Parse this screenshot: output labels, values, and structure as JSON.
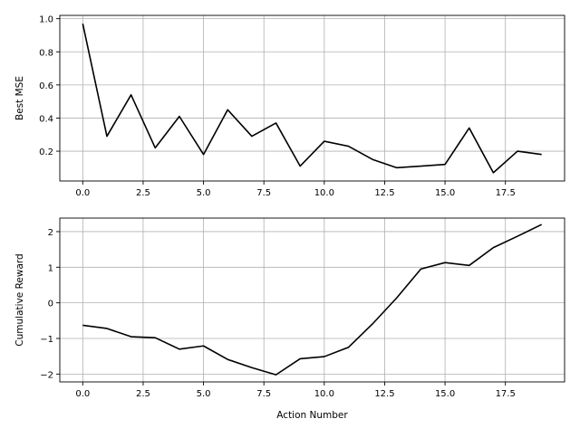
{
  "chart_data": [
    {
      "type": "line",
      "title": "",
      "xlabel": "",
      "ylabel": "Best MSE",
      "xlim": [
        -0.95,
        19.95
      ],
      "ylim": [
        0.02,
        1.02
      ],
      "xticks": [
        0.0,
        2.5,
        5.0,
        7.5,
        10.0,
        12.5,
        15.0,
        17.5
      ],
      "xtick_labels": [
        "0.0",
        "2.5",
        "5.0",
        "7.5",
        "10.0",
        "12.5",
        "15.0",
        "17.5"
      ],
      "yticks": [
        0.2,
        0.4,
        0.6,
        0.8,
        1.0
      ],
      "ytick_labels": [
        "0.2",
        "0.4",
        "0.6",
        "0.8",
        "1.0"
      ],
      "grid": true,
      "line_color": "#000000",
      "x": [
        0,
        1,
        2,
        3,
        4,
        5,
        6,
        7,
        8,
        9,
        10,
        11,
        12,
        13,
        14,
        15,
        16,
        17,
        18,
        19
      ],
      "values": [
        0.97,
        0.29,
        0.54,
        0.22,
        0.41,
        0.18,
        0.45,
        0.29,
        0.37,
        0.11,
        0.26,
        0.23,
        0.15,
        0.1,
        0.11,
        0.12,
        0.34,
        0.07,
        0.2,
        0.18
      ]
    },
    {
      "type": "line",
      "title": "",
      "xlabel": "Action Number",
      "ylabel": "Cumulative Reward",
      "xlim": [
        -0.95,
        19.95
      ],
      "ylim": [
        -2.22,
        2.38
      ],
      "xticks": [
        0.0,
        2.5,
        5.0,
        7.5,
        10.0,
        12.5,
        15.0,
        17.5
      ],
      "xtick_labels": [
        "0.0",
        "2.5",
        "5.0",
        "7.5",
        "10.0",
        "12.5",
        "15.0",
        "17.5"
      ],
      "yticks": [
        -2,
        -1,
        0,
        1,
        2
      ],
      "ytick_labels": [
        "−2",
        "−1",
        "0",
        "1",
        "2"
      ],
      "grid": true,
      "line_color": "#000000",
      "x": [
        0,
        1,
        2,
        3,
        4,
        5,
        6,
        7,
        8,
        9,
        10,
        11,
        12,
        13,
        14,
        15,
        16,
        17,
        18,
        19
      ],
      "values": [
        -0.63,
        -0.72,
        -0.95,
        -0.98,
        -1.3,
        -1.21,
        -1.59,
        -1.82,
        -2.02,
        -1.57,
        -1.51,
        -1.25,
        -0.59,
        0.14,
        0.95,
        1.13,
        1.05,
        1.55,
        1.87,
        2.2
      ]
    }
  ]
}
